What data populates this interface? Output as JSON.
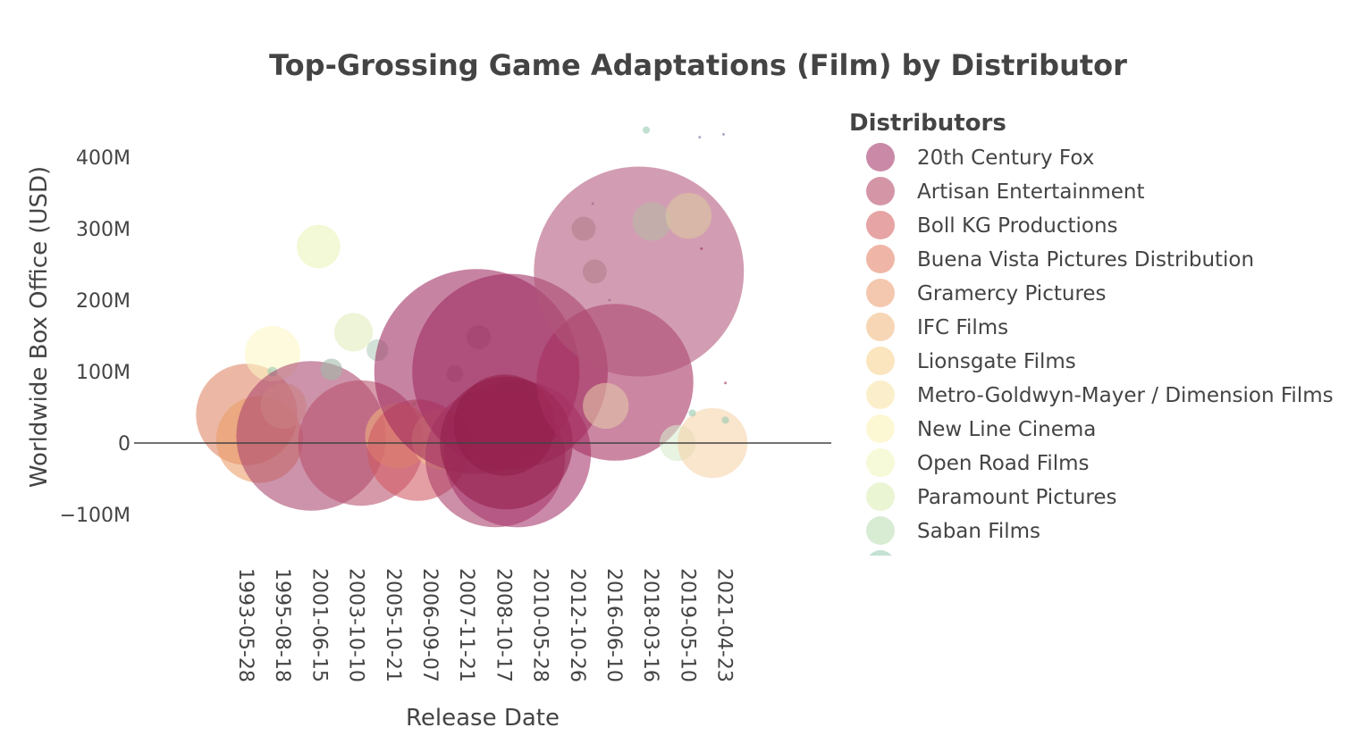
{
  "chart_data": {
    "type": "scatter",
    "title": "Top-Grossing Game Adaptations (Film) by Distributor",
    "xlabel": "Release Date",
    "ylabel": "Worldwide Box Office (USD)",
    "x_axis_type": "category",
    "x_categories": [
      "1993-05-28",
      "1995-08-18",
      "2001-06-15",
      "2003-10-10",
      "2005-10-21",
      "2006-09-07",
      "2007-11-21",
      "2008-10-17",
      "2010-05-28",
      "2012-10-26",
      "2016-06-10",
      "2018-03-16",
      "2019-05-10",
      "2021-04-23"
    ],
    "ylim": [
      -155000000,
      445000000
    ],
    "y_tick_values": [
      -100000000,
      0,
      100000000,
      200000000,
      300000000,
      400000000
    ],
    "y_tick_labels": [
      "−100M",
      "0",
      "100M",
      "200M",
      "300M",
      "400M"
    ],
    "zero_line": true,
    "grid": false,
    "legend": {
      "title": "Distributors",
      "position": "right",
      "entries": [
        {
          "name": "20th Century Fox",
          "color": "#9e2a5e"
        },
        {
          "name": "Artisan Entertainment",
          "color": "#b1405f"
        },
        {
          "name": "Boll KG Productions",
          "color": "#d2595a"
        },
        {
          "name": "Buena Vista Pictures Distribution",
          "color": "#e17a5e"
        },
        {
          "name": "Gramercy Pictures",
          "color": "#eb9a6c"
        },
        {
          "name": "IFC Films",
          "color": "#f0b47a"
        },
        {
          "name": "Lionsgate Films",
          "color": "#f6cf8b"
        },
        {
          "name": "Metro-Goldwyn-Mayer / Dimension Films",
          "color": "#f8e2a0"
        },
        {
          "name": "New Line Cinema",
          "color": "#fbf3b0"
        },
        {
          "name": "Open Road Films",
          "color": "#eef5b8"
        },
        {
          "name": "Paramount Pictures",
          "color": "#d8ecb0"
        },
        {
          "name": "Saban Films",
          "color": "#b8dcae"
        },
        {
          "name": "",
          "color": "#94c9b0"
        }
      ]
    },
    "points": [
      {
        "x": 0.0,
        "y": 40000000,
        "size": 0.42,
        "color": "#df8464"
      },
      {
        "x": 0.35,
        "y": 5000000,
        "size": 0.36,
        "color": "#ea9c68"
      },
      {
        "x": 0.7,
        "y": 125000000,
        "size": 0.23,
        "color": "#fbf6c4"
      },
      {
        "x": 0.7,
        "y": 100000000,
        "size": 0.04,
        "color": "#94c9b0"
      },
      {
        "x": 1.0,
        "y": 52000000,
        "size": 0.19,
        "color": "#f6d3a0"
      },
      {
        "x": 1.75,
        "y": 10000000,
        "size": 0.62,
        "color": "#a8456d"
      },
      {
        "x": 1.95,
        "y": 275000000,
        "size": 0.18,
        "color": "#eaf3b8"
      },
      {
        "x": 2.3,
        "y": 103000000,
        "size": 0.09,
        "color": "#a0b8a8"
      },
      {
        "x": 2.9,
        "y": 155000000,
        "size": 0.16,
        "color": "#e0ecbc"
      },
      {
        "x": 3.55,
        "y": 130000000,
        "size": 0.09,
        "color": "#b2cdbd"
      },
      {
        "x": 3.1,
        "y": 0,
        "size": 0.52,
        "color": "#b9506d"
      },
      {
        "x": 4.1,
        "y": 10000000,
        "size": 0.27,
        "color": "#f0b47e"
      },
      {
        "x": 4.55,
        "y": 55000000,
        "size": 0.02,
        "color": "#94c9b0"
      },
      {
        "x": 4.65,
        "y": -10000000,
        "size": 0.42,
        "color": "#d05a63"
      },
      {
        "x": 5.3,
        "y": 5000000,
        "size": 0.25,
        "color": "#f4c08a"
      },
      {
        "x": 5.65,
        "y": 97000000,
        "size": 0.07,
        "color": "#a6bfb0"
      },
      {
        "x": 6.3,
        "y": 148000000,
        "size": 0.1,
        "color": "#a6bfb0"
      },
      {
        "x": 6.3,
        "y": 0,
        "size": 0.01,
        "color": "#6c8aa0"
      },
      {
        "x": 6.25,
        "y": 100000000,
        "size": 0.85,
        "color": "#9e2a5e"
      },
      {
        "x": 6.75,
        "y": -20000000,
        "size": 0.58,
        "color": "#a83c67"
      },
      {
        "x": 7.15,
        "y": 100000000,
        "size": 0.81,
        "color": "#9e2a5e"
      },
      {
        "x": 7.35,
        "y": -15000000,
        "size": 0.61,
        "color": "#a6346a"
      },
      {
        "x": 7.05,
        "y": 0,
        "size": 0.55,
        "color": "#931f4a"
      },
      {
        "x": 7.0,
        "y": 25000000,
        "size": 0.42,
        "color": "#931f4a"
      },
      {
        "x": 9.15,
        "y": 300000000,
        "size": 0.1,
        "color": "#b0b09a"
      },
      {
        "x": 9.45,
        "y": 240000000,
        "size": 0.1,
        "color": "#b0b09a"
      },
      {
        "x": 9.4,
        "y": 335000000,
        "size": 0.01,
        "color": "#6c6aa0"
      },
      {
        "x": 9.85,
        "y": 200000000,
        "size": 0.01,
        "color": "#6c6aa0"
      },
      {
        "x": 10.0,
        "y": 85000000,
        "size": 0.65,
        "color": "#a52f5f"
      },
      {
        "x": 10.65,
        "y": 240000000,
        "size": 0.87,
        "color": "#b2567a"
      },
      {
        "x": 9.75,
        "y": 52000000,
        "size": 0.19,
        "color": "#e5c8a8"
      },
      {
        "x": 11.0,
        "y": 310000000,
        "size": 0.16,
        "color": "#b8b8a6"
      },
      {
        "x": 10.85,
        "y": 438000000,
        "size": 0.03,
        "color": "#94c9b0"
      },
      {
        "x": 12.0,
        "y": 318000000,
        "size": 0.19,
        "color": "#dcc8a0"
      },
      {
        "x": 11.7,
        "y": 0,
        "size": 0.15,
        "color": "#d7eccb"
      },
      {
        "x": 12.65,
        "y": 0,
        "size": 0.29,
        "color": "#f6d3a8"
      },
      {
        "x": 12.1,
        "y": 42000000,
        "size": 0.03,
        "color": "#94c9b0"
      },
      {
        "x": 13.0,
        "y": 32000000,
        "size": 0.03,
        "color": "#94c9b0"
      },
      {
        "x": 12.3,
        "y": 428000000,
        "size": 0.005,
        "color": "#6c6aa0"
      },
      {
        "x": 12.95,
        "y": 432000000,
        "size": 0.005,
        "color": "#6c6aa0"
      },
      {
        "x": 12.35,
        "y": 272000000,
        "size": 0.005,
        "color": "#9e2a5e"
      },
      {
        "x": 13.0,
        "y": 84000000,
        "size": 0.005,
        "color": "#9e2a5e"
      }
    ]
  }
}
